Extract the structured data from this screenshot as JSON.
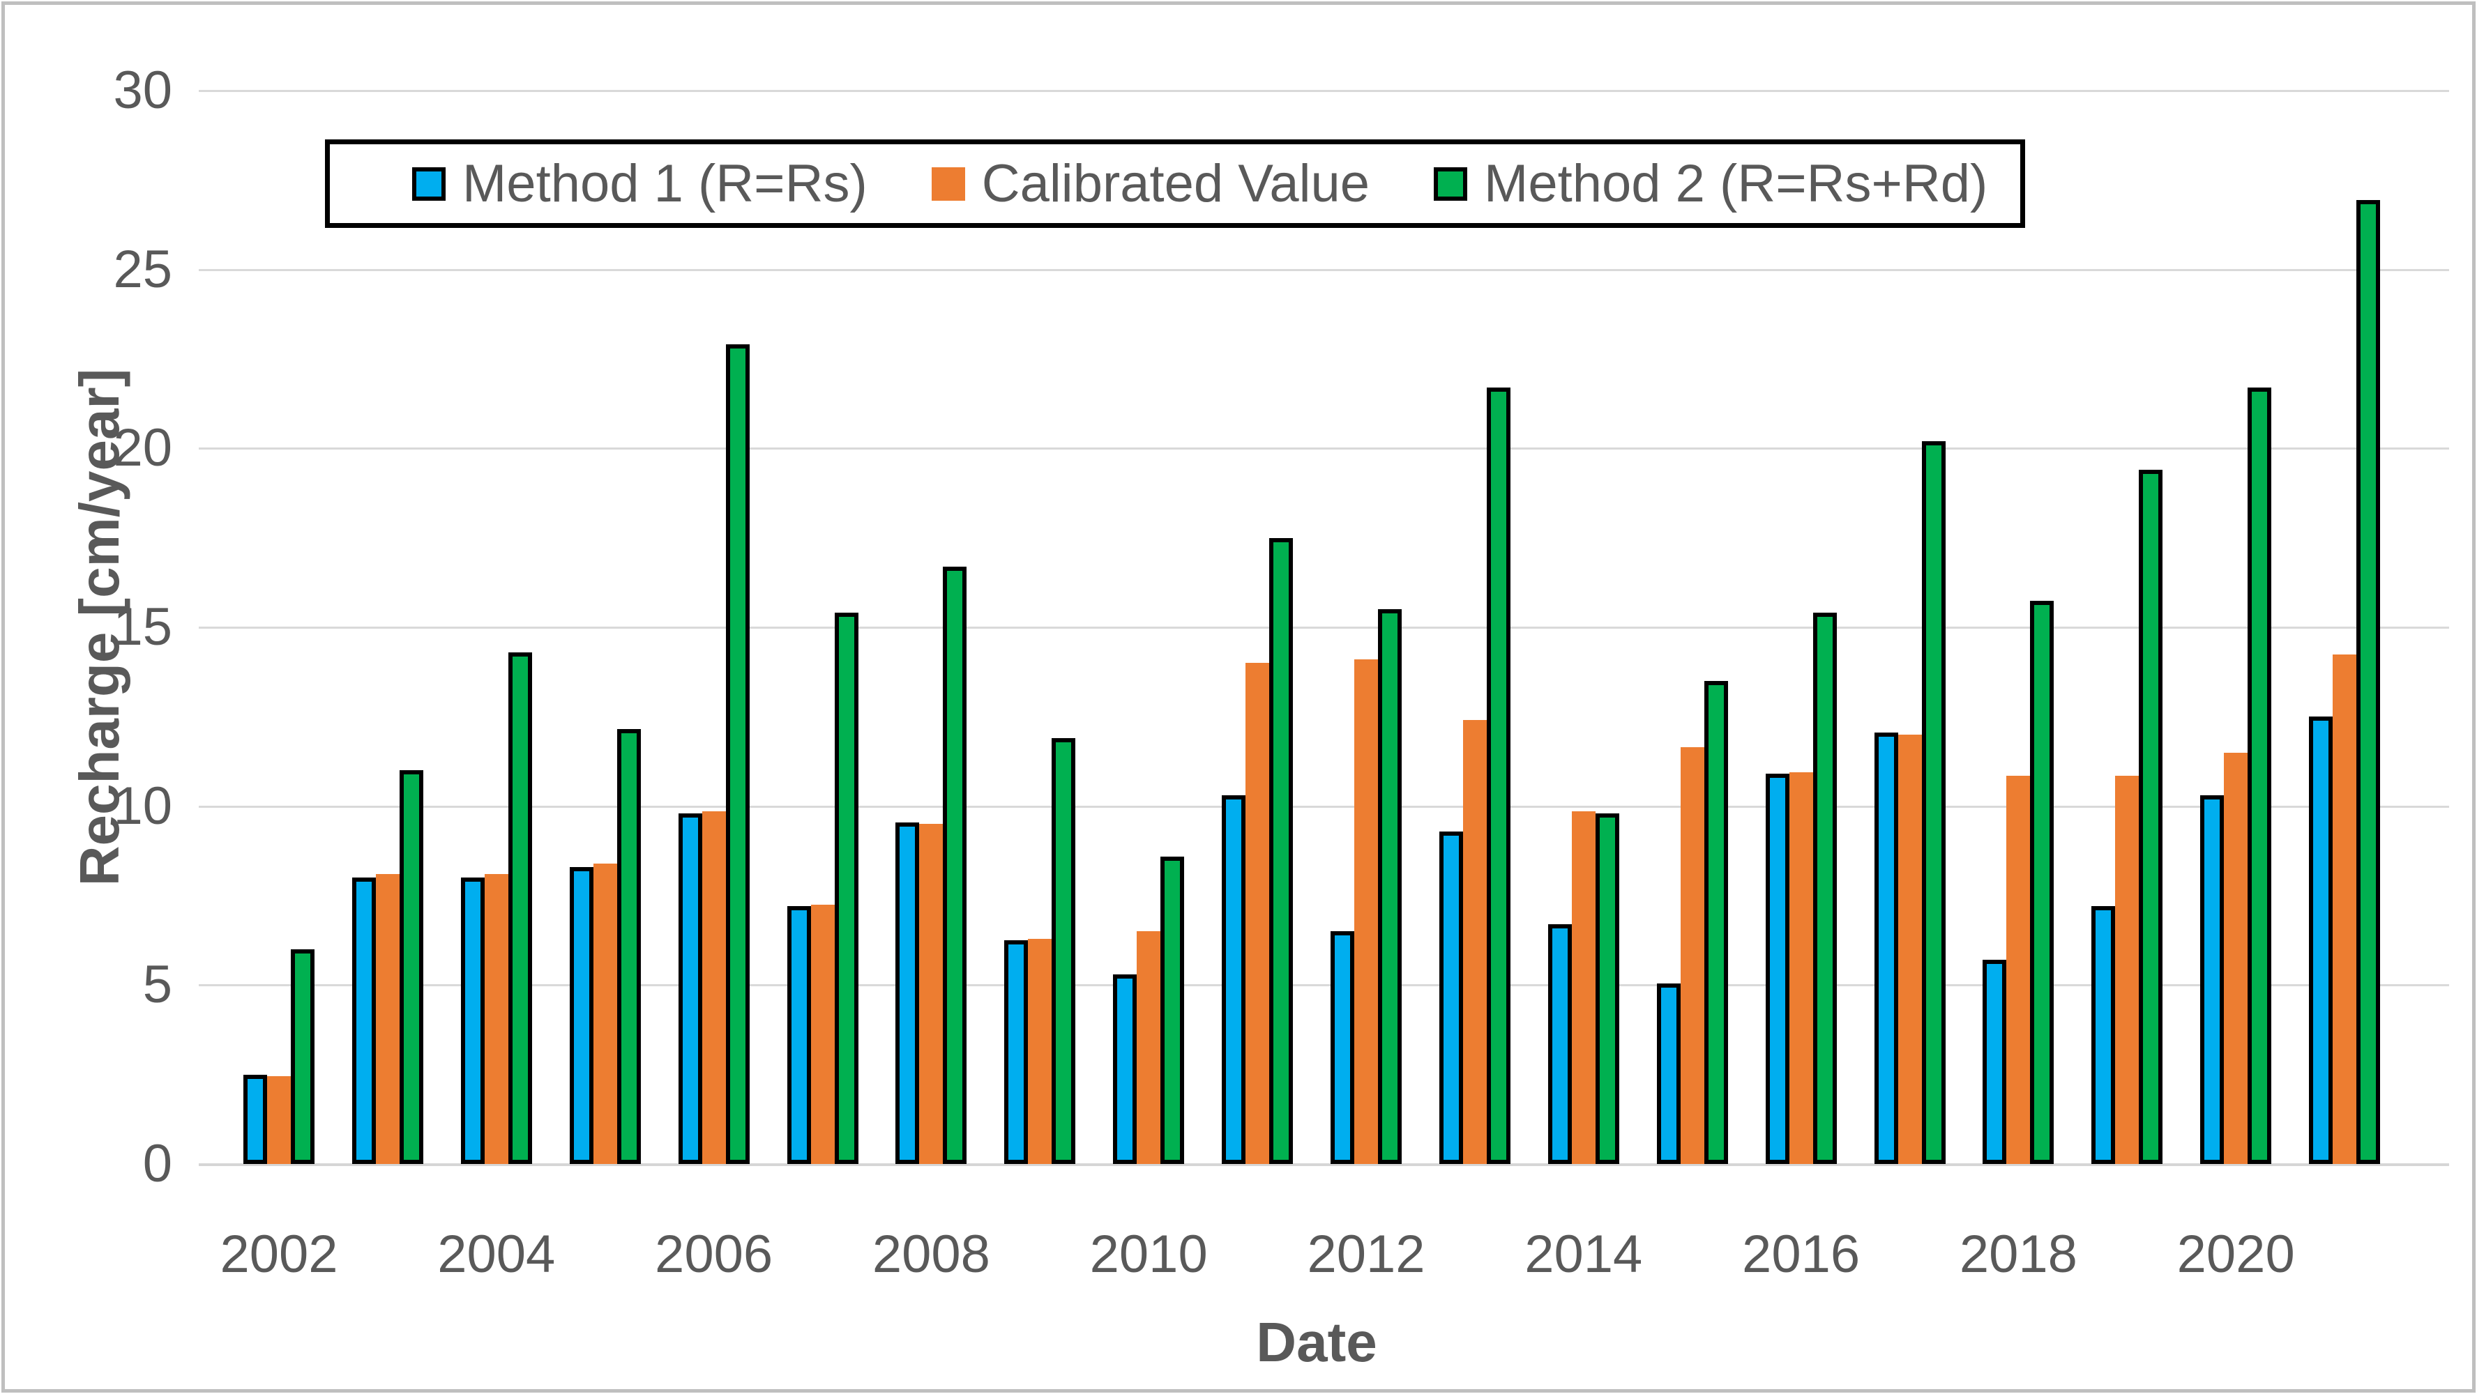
{
  "chart_data": {
    "type": "bar",
    "title": "",
    "xlabel": "Date",
    "ylabel": "Recharge [cm/year]",
    "ylim": [
      0,
      30
    ],
    "y_tick_step": 5,
    "y_ticks": [
      "0",
      "5",
      "10",
      "15",
      "20",
      "25",
      "30"
    ],
    "grid": "horizontal-only",
    "legend_position": "top-center-inside",
    "categories": [
      2002,
      2003,
      2004,
      2005,
      2006,
      2007,
      2008,
      2009,
      2010,
      2011,
      2012,
      2013,
      2014,
      2015,
      2016,
      2017,
      2018,
      2019,
      2020,
      2021
    ],
    "x_tick_labels": [
      "2002",
      "2004",
      "2006",
      "2008",
      "2010",
      "2012",
      "2014",
      "2016",
      "2018",
      "2020"
    ],
    "series": [
      {
        "name": "Method 1 (R=Rs)",
        "color": "#00AEEF",
        "border_color": "#000000",
        "values": [
          2.5,
          8.0,
          8.0,
          8.3,
          9.8,
          7.2,
          9.55,
          6.25,
          5.3,
          10.3,
          6.5,
          9.3,
          6.7,
          5.05,
          10.9,
          12.05,
          5.7,
          7.2,
          10.3,
          12.5
        ]
      },
      {
        "name": "Calibrated Value",
        "color": "#ED7D31",
        "border_color": null,
        "values": [
          2.45,
          8.1,
          8.1,
          8.4,
          9.85,
          7.25,
          9.5,
          6.3,
          6.5,
          14.0,
          14.1,
          12.4,
          9.85,
          11.65,
          10.95,
          12.0,
          10.85,
          10.85,
          11.5,
          14.25
        ]
      },
      {
        "name": "Method 2 (R=Rs+Rd)",
        "color": "#00B050",
        "border_color": "#000000",
        "values": [
          6.0,
          11.0,
          14.3,
          12.15,
          22.9,
          15.4,
          16.7,
          11.9,
          8.6,
          17.5,
          15.5,
          21.7,
          9.8,
          13.5,
          15.4,
          20.2,
          15.75,
          19.4,
          21.7,
          26.95
        ]
      }
    ],
    "colors": {
      "gridline": "#d9d9d9",
      "axis_text": "#595959",
      "legend_border": "#000000",
      "frame_border": "#bfbfbf"
    }
  }
}
